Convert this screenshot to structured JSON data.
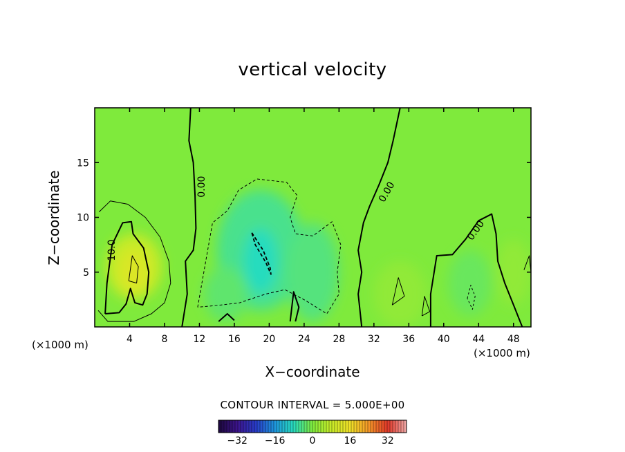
{
  "chart_data": {
    "type": "heatmap",
    "title": "vertical velocity",
    "xlabel": "X−coordinate",
    "ylabel": "Z−coordinate",
    "x_unit": "(×1000 m)",
    "y_unit": "(×1000 m)",
    "xlim": [
      0,
      50
    ],
    "ylim": [
      0,
      20
    ],
    "x_ticks": [
      4,
      8,
      12,
      16,
      20,
      24,
      28,
      32,
      36,
      40,
      44,
      48
    ],
    "y_ticks": [
      5,
      10,
      15
    ],
    "contour_interval_text": "CONTOUR INTERVAL = 5.000E+00",
    "contour_interval": 5.0,
    "colorbar": {
      "range": [
        -40,
        40
      ],
      "ticks": [
        -32,
        -16,
        0,
        16,
        32
      ],
      "tick_labels": [
        "−32",
        "−16",
        "0",
        "16",
        "32"
      ]
    },
    "contour_labels": [
      {
        "text": "10.0",
        "x": 2.0,
        "z": 7.0,
        "rotation": -90
      },
      {
        "text": "0.00",
        "x": 12.3,
        "z": 12.8,
        "rotation": -90
      },
      {
        "text": "0.00",
        "x": 33.5,
        "z": 12.3,
        "rotation": -60
      },
      {
        "text": "0.00",
        "x": 43.7,
        "z": 8.8,
        "rotation": -55
      }
    ],
    "features": [
      {
        "x": 4.5,
        "z": 5.5,
        "w": 8,
        "description": "updraft core"
      },
      {
        "x": 19,
        "z": 6,
        "w": -8,
        "description": "downdraft core"
      },
      {
        "x": 25,
        "z": 5,
        "w": -4,
        "description": "downdraft"
      },
      {
        "x": 43,
        "z": 4,
        "w": -2,
        "description": "weak downdraft"
      }
    ]
  },
  "colors": {
    "background_field": "#7fea3c",
    "zero_contour": "#000000"
  }
}
